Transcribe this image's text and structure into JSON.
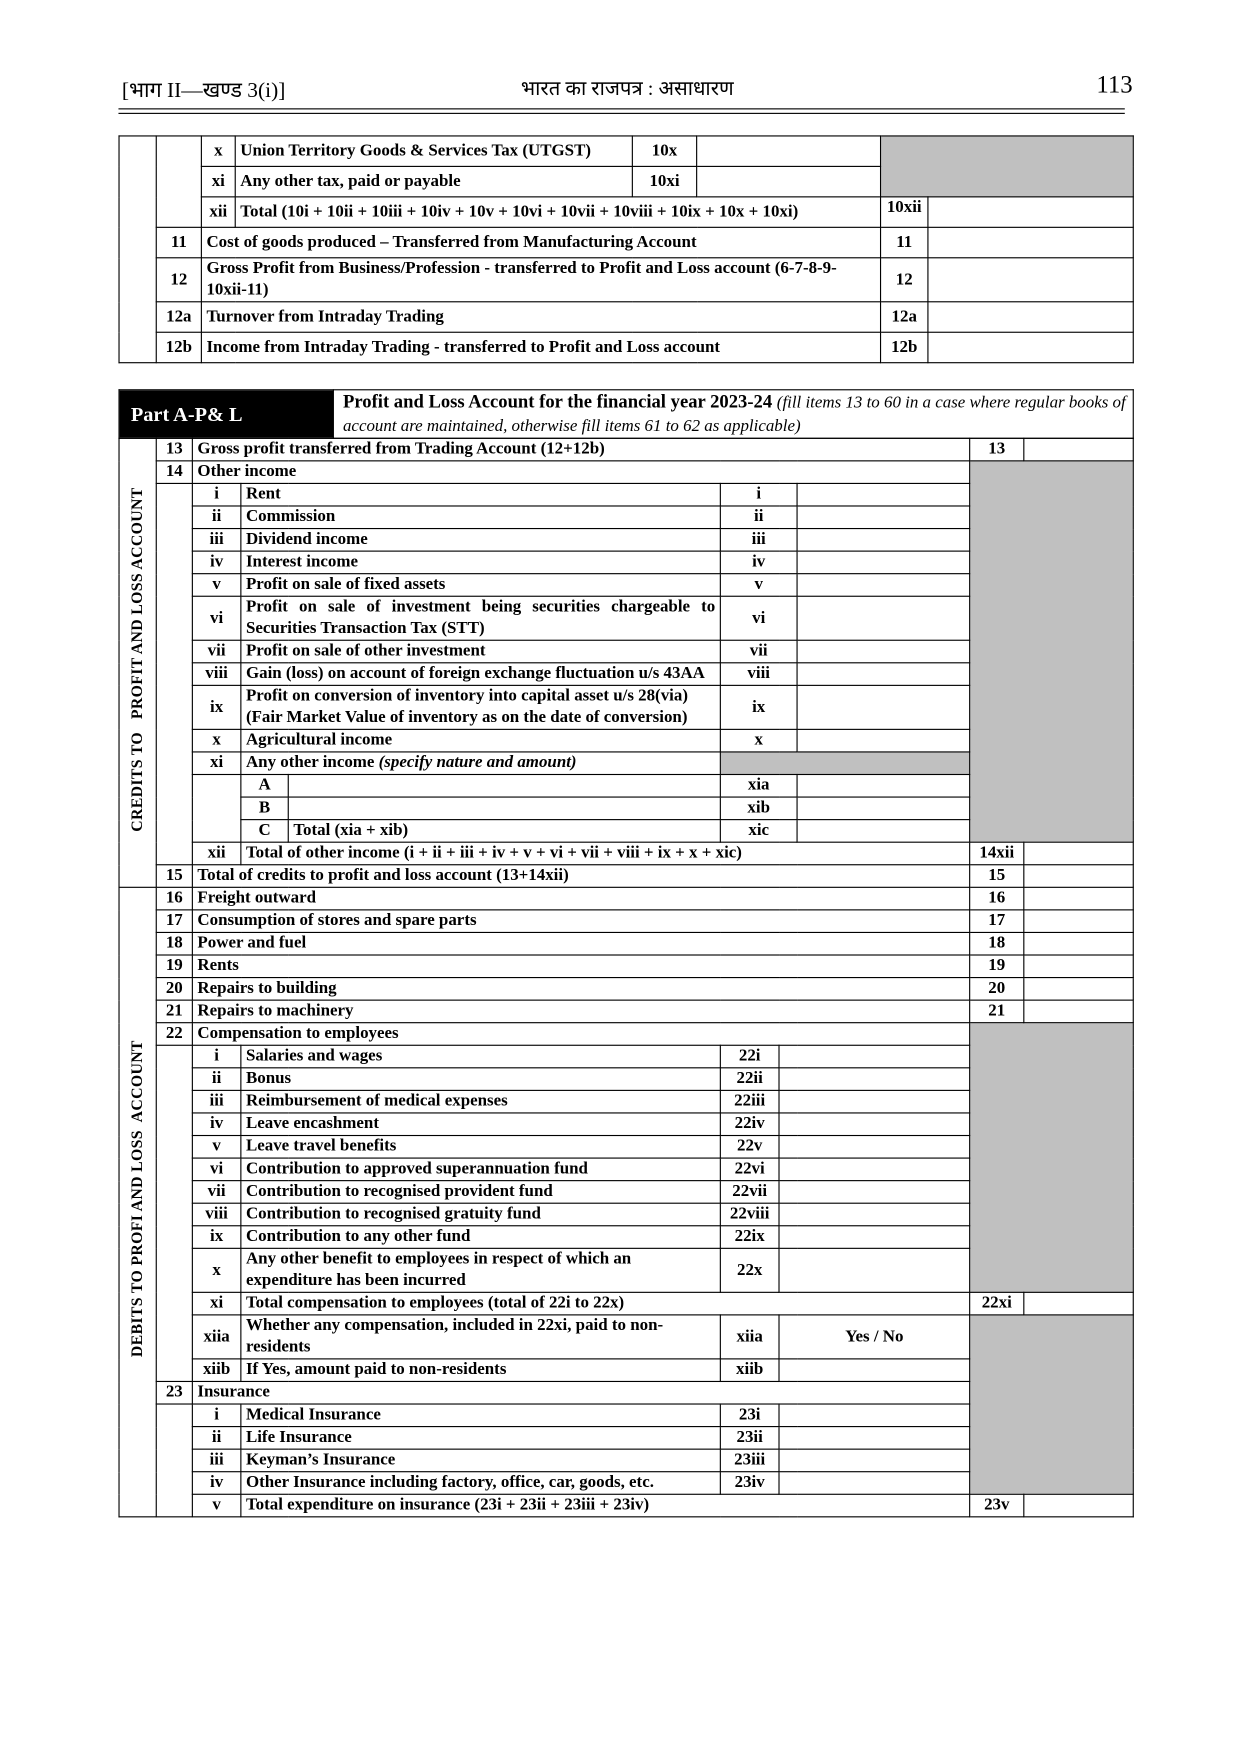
{
  "header": {
    "left": "[भाग II—खण्ड 3(i)]",
    "center": "भारत का राजपत्र : असाधारण",
    "page_number": "113"
  },
  "top_rows": [
    {
      "sub": "x",
      "label": "Union Territory Goods & Services Tax (UTGST)",
      "code": "10x"
    },
    {
      "sub": "xi",
      "label": "Any other tax, paid or payable",
      "code": "10xi"
    },
    {
      "sub": "xii",
      "label": "Total (10i + 10ii + 10iii + 10iv + 10v + 10vi + 10vii + 10viii + 10ix + 10x + 10xi)",
      "code": "10xii"
    },
    {
      "num": "11",
      "label": "Cost of goods produced – Transferred from Manufacturing Account",
      "code": "11"
    },
    {
      "num": "12",
      "label": "Gross Profit from Business/Profession - transferred to Profit and Loss account (6-7-8-9-10xii-11)",
      "code": "12"
    },
    {
      "num": "12a",
      "label": "Turnover from Intraday Trading",
      "code": "12a"
    },
    {
      "num": "12b",
      "label": "Income from Intraday Trading - transferred to Profit and Loss account",
      "code": "12b"
    }
  ],
  "part": {
    "tag": "Part A-P& L",
    "title": "Profit and Loss Account for the financial year  2023-24",
    "note": "(fill items 13 to 60 in a case where regular books of account are maintained, otherwise fill items 61 to 62 as applicable)"
  },
  "side_labels": {
    "credits": "CREDITS TO   PROFIT AND LOSS ACCOUNT",
    "debits": "DEBITS TO PROFI AND LOSS  ACCOUNT"
  },
  "colors": {
    "shade": "#c0c0c0",
    "tag_bg": "#000000"
  },
  "credits_rows": [
    {
      "type": "main",
      "num": "13",
      "label": "Gross profit transferred from Trading Account (12+12b)",
      "code": "13"
    },
    {
      "type": "head",
      "num": "14",
      "label": "Other income"
    },
    {
      "type": "sub",
      "sub": "i",
      "label": "Rent",
      "code": "i"
    },
    {
      "type": "sub",
      "sub": "ii",
      "label": "Commission",
      "code": "ii"
    },
    {
      "type": "sub",
      "sub": "iii",
      "label": "Dividend income",
      "code": "iii"
    },
    {
      "type": "sub",
      "sub": "iv",
      "label": "Interest income",
      "code": "iv"
    },
    {
      "type": "sub",
      "sub": "v",
      "label": "Profit on sale of fixed assets",
      "code": "v"
    },
    {
      "type": "sub",
      "sub": "vi",
      "label": "Profit on sale of investment being securities chargeable to Securities Transaction Tax (STT)",
      "code": "vi"
    },
    {
      "type": "sub",
      "sub": "vii",
      "label": "Profit on sale of other investment",
      "code": "vii"
    },
    {
      "type": "sub",
      "sub": "viii",
      "label": "Gain (loss) on account of foreign exchange fluctuation u/s 43AA",
      "code": "viii"
    },
    {
      "type": "sub",
      "sub": "ix",
      "label": "Profit on conversion of inventory into capital asset u/s 28(via)\n(Fair Market Value of inventory as on the date of conversion)",
      "code": "ix"
    },
    {
      "type": "sub",
      "sub": "x",
      "label": "Agricultural income",
      "code": "x"
    },
    {
      "type": "subgray",
      "sub": "xi",
      "label": "Any other income",
      "label_note": "(specify nature and amount)"
    },
    {
      "type": "letter",
      "letter": "A",
      "label": "",
      "code": "xia"
    },
    {
      "type": "letter",
      "letter": "B",
      "label": "",
      "code": "xib"
    },
    {
      "type": "letter",
      "letter": "C",
      "label": "Total (xia + xib)",
      "code": "xic"
    },
    {
      "type": "total",
      "sub": "xii",
      "label": "Total of other income (i + ii + iii + iv + v + vi + vii + viii + ix + x + xic)",
      "code": "14xii"
    },
    {
      "type": "main",
      "num": "15",
      "label": "Total of credits to profit and loss account (13+14xii)",
      "code": "15"
    }
  ],
  "debits_rows": [
    {
      "type": "main",
      "num": "16",
      "label": "Freight outward",
      "code": "16"
    },
    {
      "type": "main",
      "num": "17",
      "label": "Consumption of stores and spare parts",
      "code": "17"
    },
    {
      "type": "main",
      "num": "18",
      "label": "Power and fuel",
      "code": "18"
    },
    {
      "type": "main",
      "num": "19",
      "label": "Rents",
      "code": "19"
    },
    {
      "type": "main",
      "num": "20",
      "label": "Repairs to building",
      "code": "20"
    },
    {
      "type": "main",
      "num": "21",
      "label": "Repairs to machinery",
      "code": "21"
    },
    {
      "type": "head",
      "num": "22",
      "label": "Compensation to employees"
    },
    {
      "type": "sub22",
      "sub": "i",
      "label": "Salaries and wages",
      "code": "22i"
    },
    {
      "type": "sub22",
      "sub": "ii",
      "label": "Bonus",
      "code": "22ii"
    },
    {
      "type": "sub22",
      "sub": "iii",
      "label": "Reimbursement of medical expenses",
      "code": "22iii"
    },
    {
      "type": "sub22",
      "sub": "iv",
      "label": "Leave encashment",
      "code": "22iv"
    },
    {
      "type": "sub22",
      "sub": "v",
      "label": "Leave travel benefits",
      "code": "22v"
    },
    {
      "type": "sub22",
      "sub": "vi",
      "label": "Contribution to approved superannuation fund",
      "code": "22vi"
    },
    {
      "type": "sub22",
      "sub": "vii",
      "label": "Contribution to recognised provident fund",
      "code": "22vii"
    },
    {
      "type": "sub22",
      "sub": "viii",
      "label": "Contribution to recognised gratuity fund",
      "code": "22viii"
    },
    {
      "type": "sub22",
      "sub": "ix",
      "label": "Contribution to any other fund",
      "code": "22ix"
    },
    {
      "type": "sub22",
      "sub": "x",
      "label": "Any other benefit to employees in respect of which an expenditure has been incurred",
      "code": "22x"
    },
    {
      "type": "total",
      "sub": "xi",
      "label": "Total compensation to employees (total of 22i to 22x)",
      "code": "22xi"
    },
    {
      "type": "sub22",
      "sub": "xiia",
      "label": "Whether any compensation, included in 22xi, paid to non-residents",
      "code": "xiia",
      "value": "Yes / No"
    },
    {
      "type": "sub22",
      "sub": "xiib",
      "label": "If Yes, amount paid to non-residents",
      "code": "xiib"
    },
    {
      "type": "head",
      "num": "23",
      "label": " Insurance"
    },
    {
      "type": "sub22",
      "sub": "i",
      "label": "Medical Insurance",
      "code": "23i"
    },
    {
      "type": "sub22",
      "sub": "ii",
      "label": "Life Insurance",
      "code": "23ii"
    },
    {
      "type": "sub22",
      "sub": "iii",
      "label": "Keyman’s Insurance",
      "code": "23iii"
    },
    {
      "type": "sub22",
      "sub": "iv",
      "label": "Other Insurance including factory, office, car, goods, etc.",
      "code": "23iv"
    },
    {
      "type": "total",
      "sub": "v",
      "label": "Total expenditure on insurance (23i + 23ii + 23iii + 23iv)",
      "code": "23v"
    }
  ]
}
